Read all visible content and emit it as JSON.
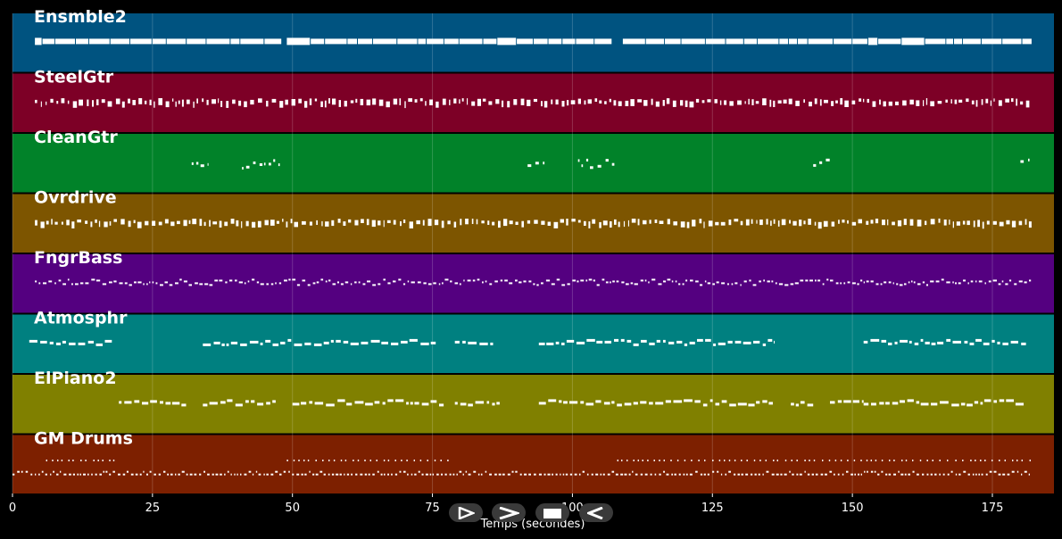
{
  "chart_data": {
    "type": "piano-roll",
    "xlabel": "Temps (secondes)",
    "xlim": [
      0,
      186
    ],
    "xticks": [
      0,
      25,
      50,
      75,
      100,
      125,
      150,
      175
    ],
    "grid": true,
    "tracks": [
      {
        "name": "Ensmble2",
        "color": "#005380",
        "style": "blocks",
        "segments": [
          [
            4,
            48
          ],
          [
            49,
            107
          ],
          [
            109,
            182
          ]
        ]
      },
      {
        "name": "SteelGtr",
        "color": "#7d0026",
        "style": "ticks",
        "segments": [
          [
            4,
            182
          ]
        ]
      },
      {
        "name": "CleanGtr",
        "color": "#018229",
        "style": "sparse",
        "segments": [
          [
            32,
            35
          ],
          [
            41,
            48
          ],
          [
            92,
            95
          ],
          [
            101,
            108
          ],
          [
            143,
            146
          ],
          [
            180,
            182
          ]
        ]
      },
      {
        "name": "Ovrdrive",
        "color": "#7d5500",
        "style": "ticks",
        "segments": [
          [
            4,
            182
          ]
        ]
      },
      {
        "name": "FngrBass",
        "color": "#540080",
        "style": "wave",
        "segments": [
          [
            4,
            182
          ]
        ]
      },
      {
        "name": "Atmosphr",
        "color": "#008080",
        "style": "blocks-small",
        "segments": [
          [
            3,
            18
          ],
          [
            34,
            76
          ],
          [
            79,
            86
          ],
          [
            94,
            136
          ],
          [
            152,
            181
          ]
        ]
      },
      {
        "name": "ElPiano2",
        "color": "#808000",
        "style": "blocks-small",
        "segments": [
          [
            19,
            31
          ],
          [
            34,
            47
          ],
          [
            50,
            77
          ],
          [
            79,
            87
          ],
          [
            94,
            136
          ],
          [
            139,
            143
          ],
          [
            146,
            152
          ],
          [
            152,
            181
          ]
        ]
      },
      {
        "name": "GM Drums",
        "color": "#7d2000",
        "style": "drums",
        "segments": [
          [
            0,
            182
          ]
        ]
      }
    ]
  },
  "controls": {
    "buttons": [
      "play-icon",
      "fast-forward-icon",
      "stop-icon",
      "rewind-icon"
    ]
  }
}
